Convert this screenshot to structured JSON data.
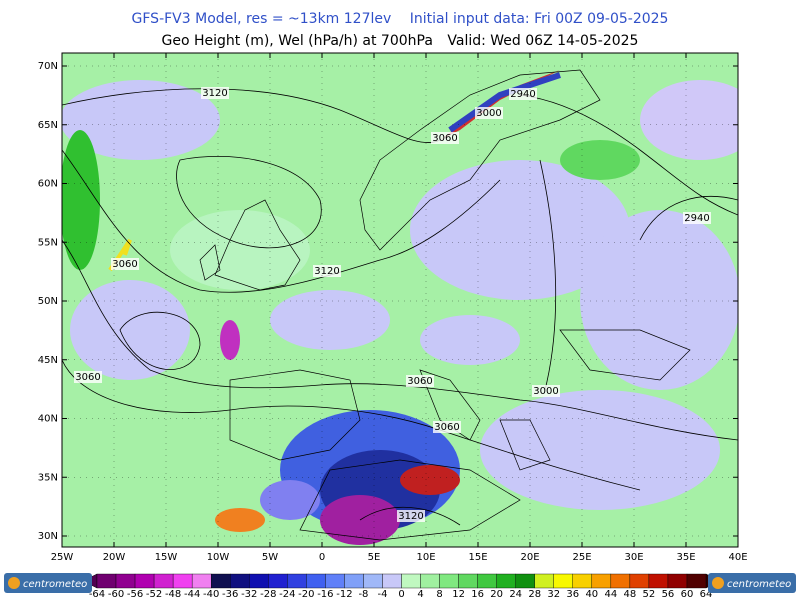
{
  "header": {
    "model": "GFS-FV3 Model, res = ~13km 127lev",
    "init": "Initial input data: Fri 00Z 09-05-2025",
    "field": "Geo Height (m), Wel (hPa/h) at 700hPa",
    "valid": "Valid: Wed 06Z 14-05-2025"
  },
  "map": {
    "lat_labels": [
      "70N",
      "65N",
      "60N",
      "55N",
      "50N",
      "45N",
      "40N",
      "35N",
      "30N"
    ],
    "lon_labels": [
      "25W",
      "20W",
      "15W",
      "10W",
      "5W",
      "0",
      "5E",
      "10E",
      "15E",
      "20E",
      "25E",
      "30E",
      "35E",
      "40E"
    ],
    "contour_labels": [
      "3120",
      "2940",
      "3000",
      "3060",
      "2940",
      "3060",
      "3120",
      "3060",
      "3060",
      "3000",
      "3060",
      "3120"
    ]
  },
  "colorbar": {
    "ticks": [
      -64,
      -60,
      -56,
      -52,
      -48,
      -44,
      -40,
      -36,
      -32,
      -28,
      -24,
      -20,
      -16,
      -12,
      -8,
      -4,
      0,
      4,
      8,
      12,
      16,
      20,
      24,
      28,
      32,
      36,
      40,
      44,
      48,
      52,
      56,
      60,
      64
    ]
  },
  "footer": {
    "logo_left": "centrometeo",
    "logo_right": "centrometeo"
  }
}
